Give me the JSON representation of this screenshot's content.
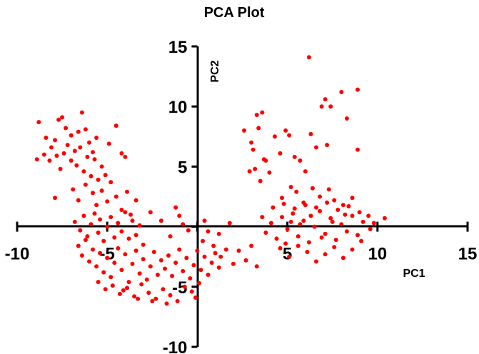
{
  "chart_data": {
    "type": "scatter",
    "title": "PCA Plot",
    "xlabel": "PC1",
    "ylabel": "PC2",
    "xlim": [
      -10,
      15
    ],
    "ylim": [
      -10,
      15
    ],
    "xticks": [
      -10,
      -5,
      0,
      5,
      10,
      15
    ],
    "yticks": [
      -10,
      -5,
      0,
      5,
      10,
      15
    ],
    "x_tick_labels": [
      "-10",
      "-5",
      "",
      "5",
      "10",
      "15"
    ],
    "y_tick_labels": [
      "-10",
      "-5",
      "",
      "5",
      "10",
      "15"
    ],
    "grid": false,
    "color": "#ff0000",
    "series": [
      {
        "values": [
          [
            -8.8,
            8.7
          ],
          [
            -8.4,
            7.4
          ],
          [
            -8.1,
            6.6
          ],
          [
            -7.9,
            7.2
          ],
          [
            -7.7,
            8.9
          ],
          [
            -7.5,
            9.1
          ],
          [
            -7.3,
            8.2
          ],
          [
            -7.2,
            6.8
          ],
          [
            -7.0,
            7.6
          ],
          [
            -6.8,
            6.3
          ],
          [
            -6.6,
            7.9
          ],
          [
            -6.4,
            9.5
          ],
          [
            -6.2,
            8.1
          ],
          [
            -6.0,
            7.0
          ],
          [
            -5.8,
            6.2
          ],
          [
            -5.6,
            7.4
          ],
          [
            -8.5,
            6.0
          ],
          [
            -8.2,
            5.5
          ],
          [
            -7.8,
            5.9
          ],
          [
            -7.6,
            4.8
          ],
          [
            -7.4,
            6.1
          ],
          [
            -7.0,
            5.5
          ],
          [
            -6.7,
            5.1
          ],
          [
            -6.5,
            6.6
          ],
          [
            -6.3,
            4.6
          ],
          [
            -6.1,
            5.8
          ],
          [
            -5.9,
            4.2
          ],
          [
            -5.7,
            5.6
          ],
          [
            -5.5,
            3.9
          ],
          [
            -5.3,
            5.0
          ],
          [
            -5.1,
            4.3
          ],
          [
            -4.9,
            6.9
          ],
          [
            -4.5,
            8.4
          ],
          [
            -4.2,
            6.1
          ],
          [
            -4.0,
            5.8
          ],
          [
            -8.9,
            5.6
          ],
          [
            -7.9,
            2.4
          ],
          [
            -6.9,
            3.1
          ],
          [
            -6.6,
            2.2
          ],
          [
            -6.2,
            3.5
          ],
          [
            -5.8,
            2.8
          ],
          [
            -5.6,
            1.8
          ],
          [
            -5.3,
            3.0
          ],
          [
            -5.0,
            2.1
          ],
          [
            -4.8,
            3.7
          ],
          [
            -4.5,
            2.5
          ],
          [
            -4.2,
            1.4
          ],
          [
            -3.9,
            2.9
          ],
          [
            -3.7,
            1.0
          ],
          [
            -3.4,
            2.2
          ],
          [
            -6.8,
            0.4
          ],
          [
            -6.5,
            -0.3
          ],
          [
            -6.3,
            0.9
          ],
          [
            -6.1,
            -0.8
          ],
          [
            -5.9,
            0.2
          ],
          [
            -5.7,
            1.1
          ],
          [
            -5.5,
            -0.5
          ],
          [
            -5.4,
            0.6
          ],
          [
            -5.2,
            -1.2
          ],
          [
            -5.0,
            0.0
          ],
          [
            -4.8,
            0.8
          ],
          [
            -4.6,
            -0.9
          ],
          [
            -4.4,
            0.3
          ],
          [
            -4.2,
            -0.4
          ],
          [
            -4.0,
            1.2
          ],
          [
            -3.8,
            -1.0
          ],
          [
            -3.6,
            0.5
          ],
          [
            -3.4,
            -0.7
          ],
          [
            -3.2,
            0.1
          ],
          [
            -3.0,
            -1.5
          ],
          [
            -6.6,
            -1.6
          ],
          [
            -6.4,
            -2.4
          ],
          [
            -6.2,
            -1.1
          ],
          [
            -6.0,
            -2.9
          ],
          [
            -5.8,
            -1.9
          ],
          [
            -5.6,
            -3.3
          ],
          [
            -5.4,
            -2.2
          ],
          [
            -5.2,
            -3.8
          ],
          [
            -5.0,
            -2.6
          ],
          [
            -4.8,
            -4.2
          ],
          [
            -4.6,
            -3.0
          ],
          [
            -4.4,
            -1.8
          ],
          [
            -4.2,
            -3.6
          ],
          [
            -4.0,
            -2.3
          ],
          [
            -3.8,
            -4.6
          ],
          [
            -3.6,
            -3.1
          ],
          [
            -3.4,
            -2.0
          ],
          [
            -3.2,
            -3.9
          ],
          [
            -3.0,
            -2.7
          ],
          [
            -2.8,
            -4.4
          ],
          [
            -2.6,
            -3.3
          ],
          [
            -2.4,
            -2.1
          ],
          [
            -2.2,
            -4.0
          ],
          [
            -2.0,
            -2.8
          ],
          [
            -1.8,
            -3.5
          ],
          [
            -1.6,
            -2.4
          ],
          [
            -1.4,
            -4.1
          ],
          [
            -1.2,
            -3.0
          ],
          [
            -1.0,
            -1.9
          ],
          [
            -0.8,
            -3.7
          ],
          [
            -0.6,
            -2.6
          ],
          [
            -0.4,
            -4.3
          ],
          [
            -0.2,
            -3.2
          ],
          [
            0.0,
            -2.0
          ],
          [
            0.2,
            -3.6
          ],
          [
            0.4,
            -2.5
          ],
          [
            0.6,
            -4.0
          ],
          [
            0.8,
            -3.0
          ],
          [
            1.0,
            -2.2
          ],
          [
            1.2,
            -3.4
          ],
          [
            -5.5,
            -4.6
          ],
          [
            -5.1,
            -5.2
          ],
          [
            -4.7,
            -4.9
          ],
          [
            -4.3,
            -5.6
          ],
          [
            -3.9,
            -5.1
          ],
          [
            -3.5,
            -5.8
          ],
          [
            -3.1,
            -4.8
          ],
          [
            -2.7,
            -5.5
          ],
          [
            -2.3,
            -6.0
          ],
          [
            -1.9,
            -5.2
          ],
          [
            -1.5,
            -5.7
          ],
          [
            -1.1,
            -6.2
          ],
          [
            -0.7,
            -5.0
          ],
          [
            -0.3,
            -5.4
          ],
          [
            0.1,
            -4.7
          ],
          [
            -2.5,
            -6.2
          ],
          [
            -1.7,
            -6.4
          ],
          [
            -4.1,
            -5.3
          ],
          [
            -3.3,
            -6.0
          ],
          [
            -0.1,
            -5.9
          ],
          [
            0.3,
            -1.2
          ],
          [
            0.6,
            -0.4
          ],
          [
            0.9,
            -1.6
          ],
          [
            1.3,
            -2.5
          ],
          [
            1.6,
            -1.9
          ],
          [
            2.0,
            -3.1
          ],
          [
            2.3,
            -2.0
          ],
          [
            2.7,
            -2.8
          ],
          [
            3.0,
            -1.6
          ],
          [
            3.3,
            -3.3
          ],
          [
            -2.0,
            0.5
          ],
          [
            -1.5,
            -0.8
          ],
          [
            -1.0,
            0.9
          ],
          [
            -0.5,
            -0.3
          ],
          [
            0.4,
            0.5
          ],
          [
            1.2,
            -0.6
          ],
          [
            1.8,
            0.3
          ],
          [
            -2.6,
            1.2
          ],
          [
            -1.2,
            1.6
          ],
          [
            -0.8,
            0.2
          ],
          [
            2.6,
            8.0
          ],
          [
            3.0,
            7.0
          ],
          [
            3.3,
            9.3
          ],
          [
            3.6,
            9.5
          ],
          [
            3.4,
            8.2
          ],
          [
            3.1,
            6.4
          ],
          [
            3.7,
            5.6
          ],
          [
            3.2,
            4.8
          ],
          [
            2.9,
            4.6
          ],
          [
            3.5,
            3.8
          ],
          [
            3.8,
            5.5
          ],
          [
            4.0,
            4.5
          ],
          [
            4.3,
            7.5
          ],
          [
            4.6,
            6.1
          ],
          [
            4.9,
            8.0
          ],
          [
            5.1,
            7.6
          ],
          [
            5.4,
            5.8
          ],
          [
            5.7,
            5.5
          ],
          [
            6.0,
            4.6
          ],
          [
            6.3,
            7.7
          ],
          [
            6.6,
            6.6
          ],
          [
            6.9,
            10.0
          ],
          [
            7.1,
            10.6
          ],
          [
            7.4,
            10.0
          ],
          [
            7.2,
            6.8
          ],
          [
            8.0,
            11.2
          ],
          [
            8.3,
            9.0
          ],
          [
            8.9,
            11.4
          ],
          [
            8.9,
            6.4
          ],
          [
            6.2,
            14.1
          ],
          [
            5.2,
            3.3
          ],
          [
            4.7,
            2.4
          ],
          [
            5.5,
            2.9
          ],
          [
            5.9,
            2.0
          ],
          [
            6.4,
            3.2
          ],
          [
            6.8,
            2.5
          ],
          [
            7.3,
            3.1
          ],
          [
            7.6,
            2.2
          ],
          [
            8.1,
            1.8
          ],
          [
            8.6,
            2.4
          ],
          [
            3.8,
            -0.5
          ],
          [
            4.1,
            0.3
          ],
          [
            4.4,
            -1.0
          ],
          [
            4.7,
            0.8
          ],
          [
            5.0,
            -0.2
          ],
          [
            5.3,
            1.1
          ],
          [
            5.6,
            -0.8
          ],
          [
            5.9,
            0.5
          ],
          [
            6.2,
            -1.3
          ],
          [
            6.5,
            0.0
          ],
          [
            6.8,
            1.3
          ],
          [
            7.1,
            -0.6
          ],
          [
            7.4,
            0.7
          ],
          [
            7.7,
            -1.1
          ],
          [
            8.0,
            0.2
          ],
          [
            8.3,
            -0.4
          ],
          [
            8.6,
            0.9
          ],
          [
            8.9,
            -0.7
          ],
          [
            9.2,
            0.4
          ],
          [
            9.6,
            -0.2
          ],
          [
            4.6,
            -1.8
          ],
          [
            5.1,
            -2.5
          ],
          [
            5.6,
            -1.6
          ],
          [
            6.1,
            -2.1
          ],
          [
            6.6,
            -2.9
          ],
          [
            7.1,
            -2.3
          ],
          [
            7.6,
            -1.7
          ],
          [
            8.1,
            -2.6
          ],
          [
            8.6,
            -1.9
          ],
          [
            9.1,
            -1.2
          ],
          [
            4.2,
            1.6
          ],
          [
            4.8,
            1.9
          ],
          [
            5.4,
            1.5
          ],
          [
            6.0,
            1.8
          ],
          [
            6.6,
            1.6
          ],
          [
            7.2,
            2.0
          ],
          [
            7.8,
            1.4
          ],
          [
            8.4,
            1.7
          ],
          [
            9.0,
            1.2
          ],
          [
            9.5,
            0.9
          ],
          [
            10.4,
            0.7
          ],
          [
            9.8,
            0.3
          ],
          [
            3.6,
            0.8
          ],
          [
            4.9,
            -1.4
          ],
          [
            5.7,
            0.2
          ],
          [
            6.3,
            0.9
          ],
          [
            6.9,
            -0.9
          ],
          [
            7.5,
            0.4
          ],
          [
            8.2,
            1.0
          ],
          [
            5.2,
            0.4
          ]
        ]
      }
    ]
  }
}
